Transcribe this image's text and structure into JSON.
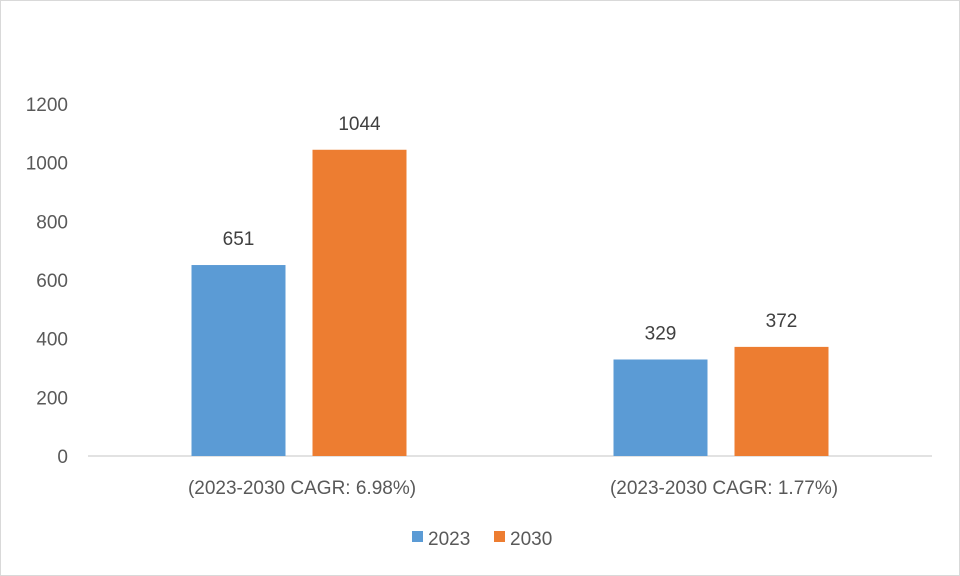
{
  "chart_data": {
    "type": "bar",
    "categories": [
      "(2023-2030  CAGR: 6.98%)",
      "(2023-2030  CAGR: 1.77%)"
    ],
    "series": [
      {
        "name": "2023",
        "values": [
          651,
          329
        ],
        "color": "#5b9bd5"
      },
      {
        "name": "2030",
        "values": [
          1044,
          372
        ],
        "color": "#ed7d31"
      }
    ],
    "ylim": [
      0,
      1200
    ],
    "yticks": [
      0,
      200,
      400,
      600,
      800,
      1000,
      1200
    ],
    "grid": false,
    "legend": "bottom",
    "title": "",
    "xlabel": "",
    "ylabel": ""
  }
}
